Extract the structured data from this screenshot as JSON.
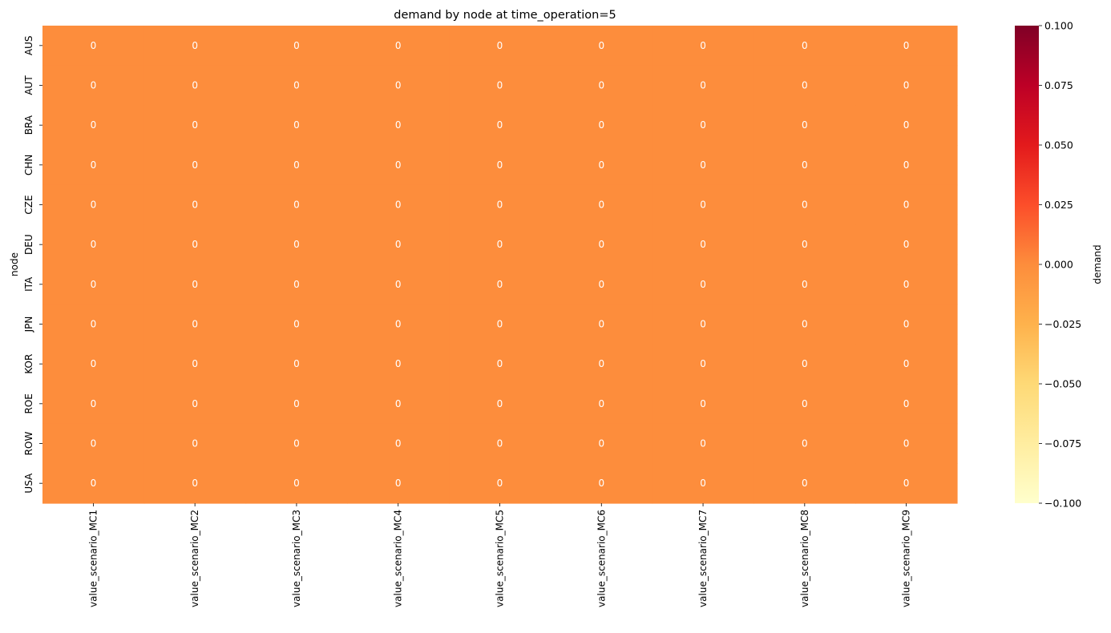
{
  "chart_data": {
    "type": "heatmap",
    "title": "demand by node at time_operation=5",
    "ylabel": "node",
    "xlabel": "",
    "rows": [
      "AUS",
      "AUT",
      "BRA",
      "CHN",
      "CZE",
      "DEU",
      "ITA",
      "JPN",
      "KOR",
      "ROE",
      "ROW",
      "USA"
    ],
    "columns": [
      "value_scenario_MC1",
      "value_scenario_MC2",
      "value_scenario_MC3",
      "value_scenario_MC4",
      "value_scenario_MC5",
      "value_scenario_MC6",
      "value_scenario_MC7",
      "value_scenario_MC8",
      "value_scenario_MC9"
    ],
    "values": [
      [
        0,
        0,
        0,
        0,
        0,
        0,
        0,
        0,
        0
      ],
      [
        0,
        0,
        0,
        0,
        0,
        0,
        0,
        0,
        0
      ],
      [
        0,
        0,
        0,
        0,
        0,
        0,
        0,
        0,
        0
      ],
      [
        0,
        0,
        0,
        0,
        0,
        0,
        0,
        0,
        0
      ],
      [
        0,
        0,
        0,
        0,
        0,
        0,
        0,
        0,
        0
      ],
      [
        0,
        0,
        0,
        0,
        0,
        0,
        0,
        0,
        0
      ],
      [
        0,
        0,
        0,
        0,
        0,
        0,
        0,
        0,
        0
      ],
      [
        0,
        0,
        0,
        0,
        0,
        0,
        0,
        0,
        0
      ],
      [
        0,
        0,
        0,
        0,
        0,
        0,
        0,
        0,
        0
      ],
      [
        0,
        0,
        0,
        0,
        0,
        0,
        0,
        0,
        0
      ],
      [
        0,
        0,
        0,
        0,
        0,
        0,
        0,
        0,
        0
      ],
      [
        0,
        0,
        0,
        0,
        0,
        0,
        0,
        0,
        0
      ]
    ],
    "cell_color": "#fd8d3c",
    "annotation_color": "#ffffff",
    "colorbar": {
      "label": "demand",
      "range": [
        -0.1,
        0.1
      ],
      "ticks": [
        "0.100",
        "0.075",
        "0.050",
        "0.025",
        "0.000",
        "−0.025",
        "−0.050",
        "−0.075",
        "−0.100"
      ],
      "colormap": [
        "#ffffcc",
        "#ffeda0",
        "#fed976",
        "#feb24c",
        "#fd8d3c",
        "#fc4e2a",
        "#e31a1c",
        "#bd0026",
        "#800026"
      ]
    }
  }
}
